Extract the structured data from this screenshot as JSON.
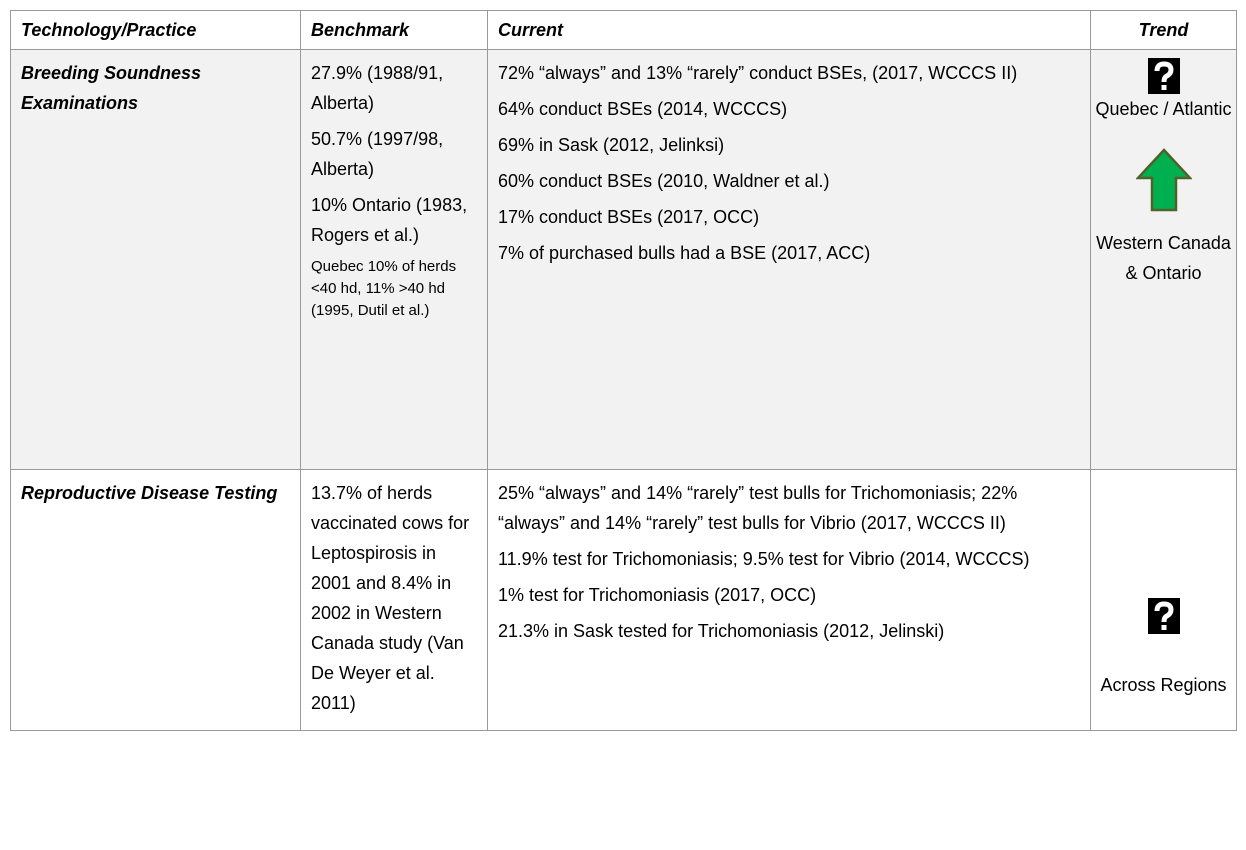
{
  "table": {
    "header": [
      "Technology/Practice",
      "Benchmark",
      "Current",
      "Trend"
    ],
    "rows": [
      {
        "practice": "Breeding Soundness Examinations",
        "benchmark": [
          "27.9% (1988/91, Alberta)",
          "50.7% (1997/98, Alberta)",
          "10% Ontario (1983, Rogers et al.)",
          "Quebec 10% of herds <40 hd, 11% >40 hd (1995, Dutil et al.)"
        ],
        "current": [
          "72% “always” and 13% “rarely” conduct BSEs, (2017, WCCCS II)",
          "64% conduct BSEs (2014, WCCCS)",
          "69% in Sask (2012, Jelinksi)",
          "60% conduct BSEs (2010, Waldner et al.)",
          "17% conduct BSEs (2017, OCC)",
          "7% of purchased bulls had a BSE (2017, ACC)"
        ],
        "trend": [
          "Quebec / Atlantic",
          "Western Canada & Ontario"
        ]
      },
      {
        "practice": "Reproductive Disease Testing",
        "benchmark": [
          "13.7% of herds vaccinated cows for Leptospirosis in 2001 and 8.4% in 2002 in Western Canada study (Van De Weyer et al. 2011)"
        ],
        "current": [
          "25% “always” and 14% “rarely” test bulls for Trichomoniasis; 22% “always” and 14% “rarely” test bulls for Vibrio (2017, WCCCS II)",
          "11.9% test for Trichomoniasis; 9.5% test for Vibrio (2014, WCCCS)",
          "1% test for Trichomoniasis (2017, OCC)",
          "21.3% in Sask tested for Trichomoniasis (2012, Jelinski)"
        ],
        "trend": [
          "Across Regions"
        ]
      }
    ]
  }
}
